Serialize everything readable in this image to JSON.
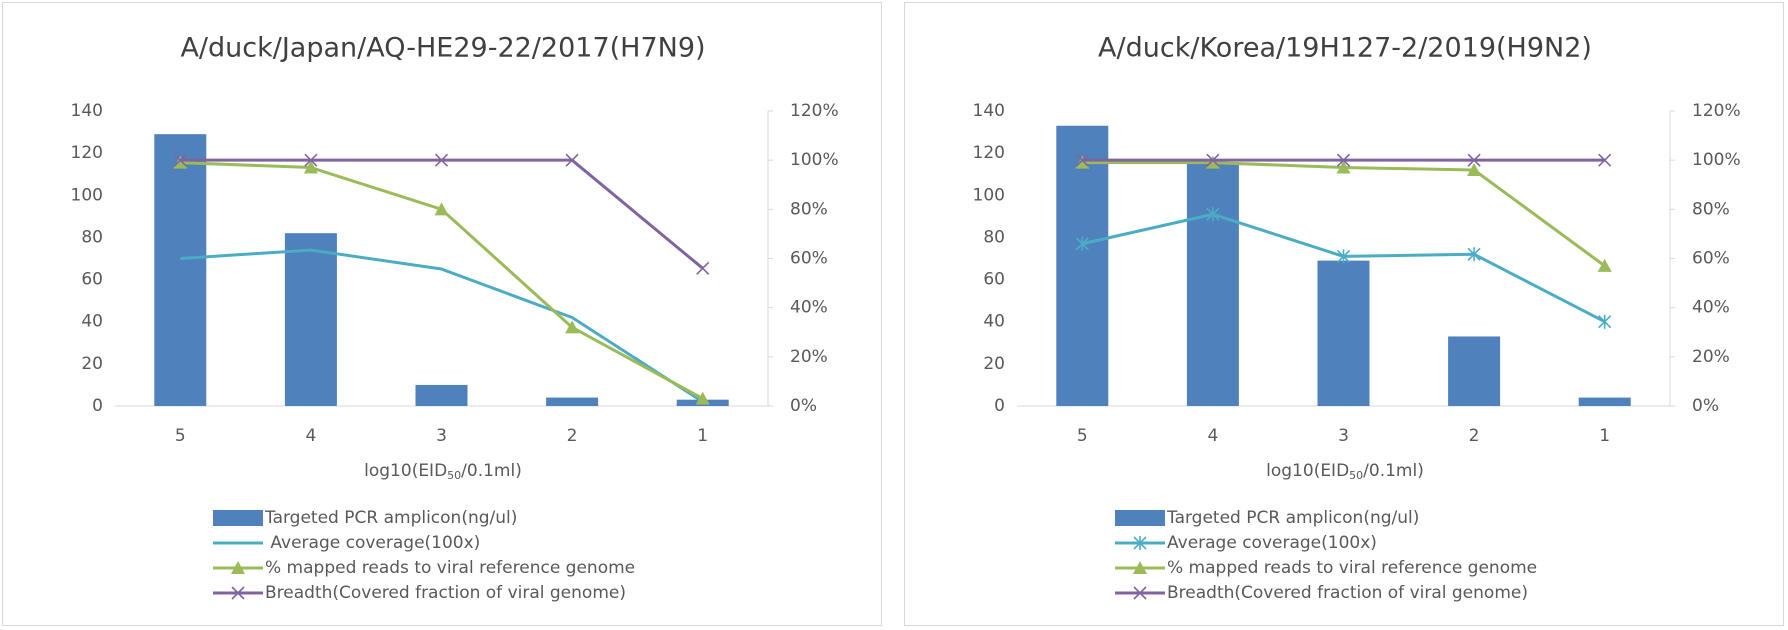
{
  "chart_data": [
    {
      "type": "bar_line_combo",
      "title": "A/duck/Japan/AQ-HE29-22/2017(H7N9)",
      "x_label_parts": [
        "log10(EID",
        "50",
        "/0.1ml)"
      ],
      "categories": [
        "5",
        "4",
        "3",
        "2",
        "1"
      ],
      "ylim": [
        0,
        140
      ],
      "yticks": [
        0,
        20,
        40,
        60,
        80,
        100,
        120,
        140
      ],
      "y2lim": [
        0,
        120
      ],
      "y2ticks": [
        {
          "value": 0,
          "label": "0%"
        },
        {
          "value": 20,
          "label": "20%"
        },
        {
          "value": 40,
          "label": "40%"
        },
        {
          "value": 60,
          "label": "60%"
        },
        {
          "value": 80,
          "label": "80%"
        },
        {
          "value": 100,
          "label": "100%"
        },
        {
          "value": 120,
          "label": "120%"
        }
      ],
      "series": [
        {
          "name": "Targeted PCR amplicon(ng/ul)",
          "kind": "bar",
          "color": "#4f81bd",
          "values": [
            129,
            82,
            10,
            4,
            3
          ]
        },
        {
          "name": " Average coverage(100x)",
          "kind": "line",
          "marker": "none",
          "color": "#4bacc6",
          "values": [
            70,
            74,
            65,
            42,
            2
          ]
        },
        {
          "name": "% mapped reads to viral reference genome",
          "kind": "line",
          "marker": "triangle",
          "axis": "y2",
          "color": "#9bbb59",
          "values": [
            99,
            97,
            80,
            32,
            3
          ]
        },
        {
          "name": "Breadth(Covered fraction of viral genome)",
          "kind": "line",
          "marker": "x",
          "axis": "y2",
          "color": "#8064a2",
          "values": [
            100,
            100,
            100,
            100,
            56
          ]
        }
      ]
    },
    {
      "type": "bar_line_combo",
      "title": "A/duck/Korea/19H127-2/2019(H9N2)",
      "x_label_parts": [
        "log10(EID",
        "50",
        "/0.1ml)"
      ],
      "categories": [
        "5",
        "4",
        "3",
        "2",
        "1"
      ],
      "ylim": [
        0,
        140
      ],
      "yticks": [
        0,
        20,
        40,
        60,
        80,
        100,
        120,
        140
      ],
      "y2lim": [
        0,
        120
      ],
      "y2ticks": [
        {
          "value": 0,
          "label": "0%"
        },
        {
          "value": 20,
          "label": "20%"
        },
        {
          "value": 40,
          "label": "40%"
        },
        {
          "value": 60,
          "label": "60%"
        },
        {
          "value": 80,
          "label": "80%"
        },
        {
          "value": 100,
          "label": "100%"
        },
        {
          "value": 120,
          "label": "120%"
        }
      ],
      "series": [
        {
          "name": "Targeted PCR amplicon(ng/ul)",
          "kind": "bar",
          "color": "#4f81bd",
          "values": [
            133,
            115,
            69,
            33,
            4
          ]
        },
        {
          "name": "Average coverage(100x)",
          "kind": "line",
          "marker": "asterisk",
          "color": "#4bacc6",
          "values": [
            77,
            91,
            71,
            72,
            40
          ]
        },
        {
          "name": "% mapped reads to viral reference genome",
          "kind": "line",
          "marker": "triangle",
          "axis": "y2",
          "color": "#9bbb59",
          "values": [
            99,
            99,
            97,
            96,
            57
          ]
        },
        {
          "name": "Breadth(Covered fraction of viral genome)",
          "kind": "line",
          "marker": "x",
          "axis": "y2",
          "color": "#8064a2",
          "values": [
            100,
            100,
            100,
            100,
            100
          ]
        }
      ]
    }
  ]
}
